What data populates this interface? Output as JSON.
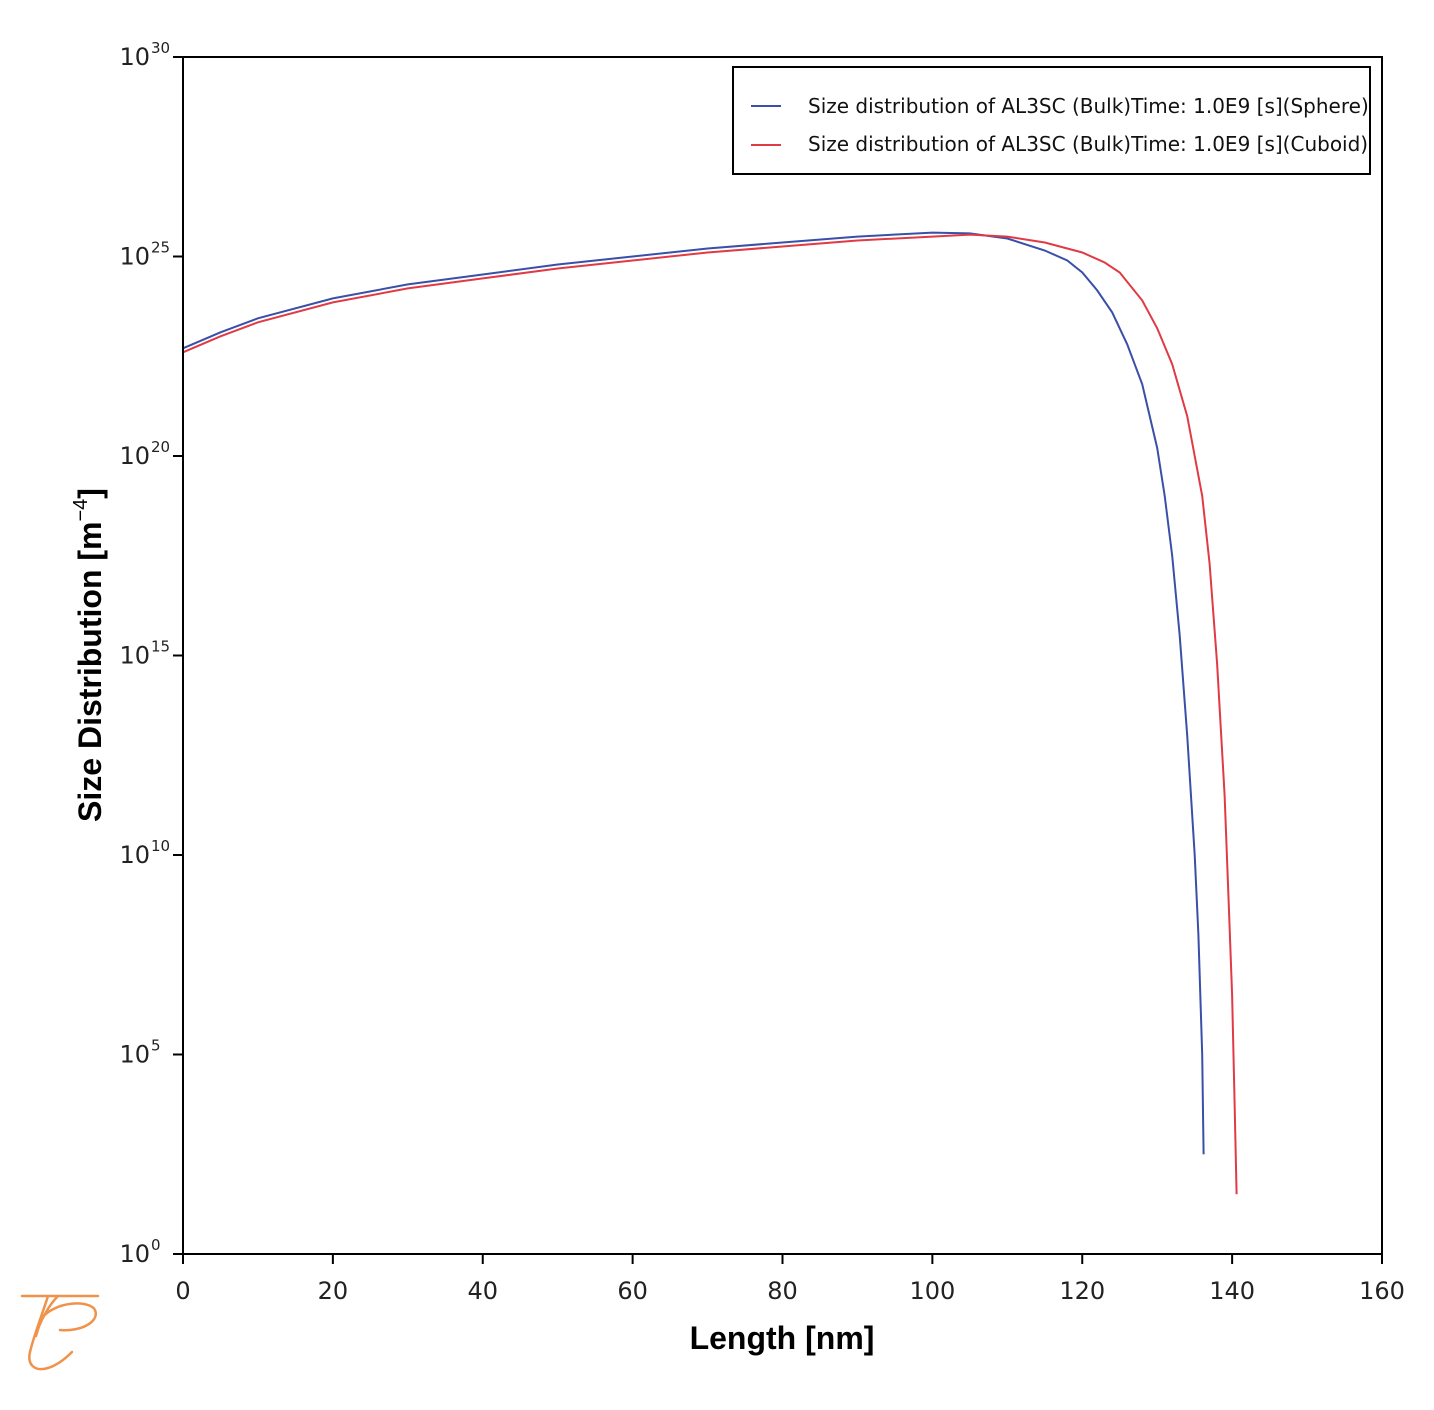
{
  "chart_data": {
    "type": "line",
    "xlabel": "Length [nm]",
    "ylabel": "Size Distribution [m",
    "ylabel_exp": "−4",
    "ylabel_close": "]",
    "xlim": [
      0,
      160
    ],
    "ylim": [
      0,
      30
    ],
    "yscale": "log",
    "x_ticks": [
      "0",
      "20",
      "40",
      "60",
      "80",
      "100",
      "120",
      "140",
      "160"
    ],
    "y_ticks": [
      {
        "base": "10",
        "exp": "0"
      },
      {
        "base": "10",
        "exp": "5"
      },
      {
        "base": "10",
        "exp": "10"
      },
      {
        "base": "10",
        "exp": "15"
      },
      {
        "base": "10",
        "exp": "20"
      },
      {
        "base": "10",
        "exp": "25"
      },
      {
        "base": "10",
        "exp": "30"
      }
    ],
    "grid": false,
    "legend_position": "top-right",
    "series": [
      {
        "name": "Size distribution of AL3SC (Bulk)Time: 1.0E9  [s](Sphere)",
        "color": "#3a4fa8",
        "x": [
          0,
          5,
          10,
          20,
          30,
          40,
          50,
          60,
          70,
          80,
          90,
          100,
          105,
          110,
          115,
          118,
          120,
          122,
          124,
          126,
          128,
          130,
          131,
          132,
          133,
          134,
          135,
          135.5,
          136,
          136.2
        ],
        "log10_y": [
          22.7,
          23.1,
          23.45,
          23.95,
          24.3,
          24.55,
          24.8,
          25.0,
          25.2,
          25.35,
          25.5,
          25.6,
          25.58,
          25.45,
          25.15,
          24.9,
          24.6,
          24.15,
          23.6,
          22.8,
          21.8,
          20.2,
          19.0,
          17.5,
          15.5,
          13.0,
          10.0,
          8.0,
          5.0,
          2.5
        ]
      },
      {
        "name": "Size distribution of AL3SC (Bulk)Time: 1.0E9  [s](Cuboid)",
        "color": "#e03a45",
        "x": [
          0,
          5,
          10,
          20,
          30,
          40,
          50,
          60,
          70,
          80,
          90,
          100,
          105,
          110,
          115,
          120,
          123,
          125,
          128,
          130,
          132,
          134,
          136,
          137,
          138,
          139,
          139.5,
          140,
          140.3,
          140.6
        ],
        "log10_y": [
          22.6,
          23.0,
          23.35,
          23.85,
          24.2,
          24.45,
          24.7,
          24.9,
          25.1,
          25.25,
          25.4,
          25.5,
          25.55,
          25.5,
          25.35,
          25.1,
          24.85,
          24.6,
          23.9,
          23.2,
          22.3,
          21.0,
          19.0,
          17.3,
          14.8,
          11.5,
          9.0,
          6.5,
          4.0,
          1.5
        ]
      }
    ]
  },
  "logo": {
    "name": "thermo-calc-logo",
    "color": "#f0924a"
  }
}
